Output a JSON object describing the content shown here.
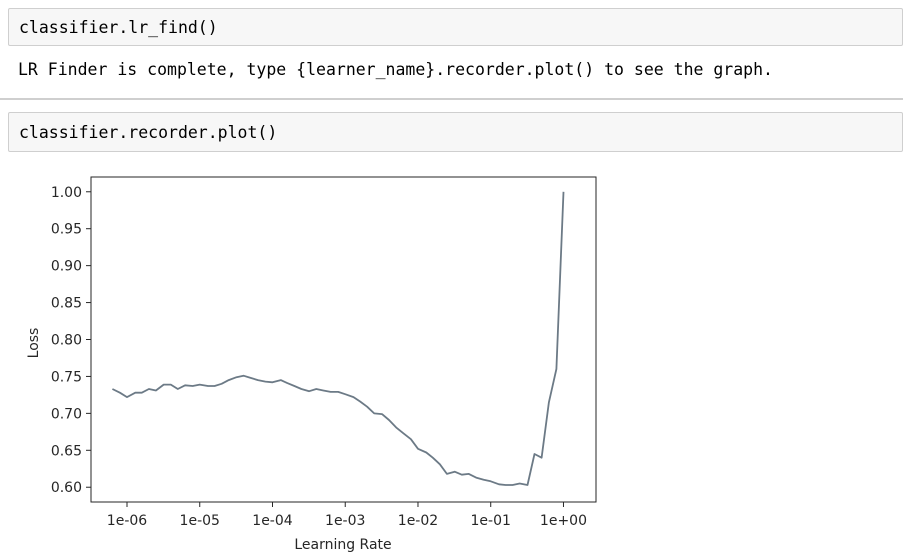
{
  "cells": [
    {
      "input": "classifier.lr_find()",
      "output": "LR Finder is complete, type {learner_name}.recorder.plot() to see the graph."
    },
    {
      "input": "classifier.recorder.plot()"
    }
  ],
  "chart_data": {
    "type": "line",
    "xlabel": "Learning Rate",
    "ylabel": "Loss",
    "xscale": "log",
    "xlim": [
      3.2e-07,
      2.8
    ],
    "ylim": [
      0.58,
      1.02
    ],
    "xticks": [
      1e-06,
      1e-05,
      0.0001,
      0.001,
      0.01,
      0.1,
      1
    ],
    "xtick_labels": [
      "1e-06",
      "1e-05",
      "1e-04",
      "1e-03",
      "1e-02",
      "1e-01",
      "1e+00"
    ],
    "yticks": [
      0.6,
      0.65,
      0.7,
      0.75,
      0.8,
      0.85,
      0.9,
      0.95,
      1.0
    ],
    "ytick_labels": [
      "0.60",
      "0.65",
      "0.70",
      "0.75",
      "0.80",
      "0.85",
      "0.90",
      "0.95",
      "1.00"
    ],
    "grid": false,
    "line_color": "#6c7a86",
    "series": [
      {
        "x": [
          6.3e-07,
          8e-07,
          1e-06,
          1.3e-06,
          1.6e-06,
          2e-06,
          2.5e-06,
          3.2e-06,
          4e-06,
          5e-06,
          6.3e-06,
          8e-06,
          1e-05,
          1.3e-05,
          1.6e-05,
          2e-05,
          2.5e-05,
          3.2e-05,
          4e-05,
          5e-05,
          6.3e-05,
          8e-05,
          0.0001,
          0.00013,
          0.00016,
          0.0002,
          0.00025,
          0.00032,
          0.0004,
          0.0005,
          0.00063,
          0.0008,
          0.001,
          0.0013,
          0.0016,
          0.002,
          0.0025,
          0.0032,
          0.004,
          0.005,
          0.0063,
          0.008,
          0.01,
          0.013,
          0.016,
          0.02,
          0.025,
          0.032,
          0.04,
          0.05,
          0.063,
          0.08,
          0.1,
          0.13,
          0.16,
          0.2,
          0.25,
          0.32,
          0.4,
          0.5,
          0.63,
          0.8,
          1.0
        ],
        "y": [
          0.733,
          0.728,
          0.722,
          0.728,
          0.728,
          0.733,
          0.731,
          0.739,
          0.739,
          0.733,
          0.738,
          0.737,
          0.739,
          0.737,
          0.737,
          0.74,
          0.745,
          0.749,
          0.751,
          0.748,
          0.745,
          0.743,
          0.742,
          0.745,
          0.741,
          0.737,
          0.733,
          0.73,
          0.733,
          0.731,
          0.729,
          0.729,
          0.726,
          0.722,
          0.716,
          0.709,
          0.7,
          0.699,
          0.691,
          0.681,
          0.673,
          0.665,
          0.652,
          0.647,
          0.64,
          0.631,
          0.618,
          0.621,
          0.617,
          0.618,
          0.613,
          0.61,
          0.608,
          0.604,
          0.603,
          0.603,
          0.605,
          0.603,
          0.645,
          0.64,
          0.715,
          0.76,
          1.0
        ]
      }
    ]
  }
}
